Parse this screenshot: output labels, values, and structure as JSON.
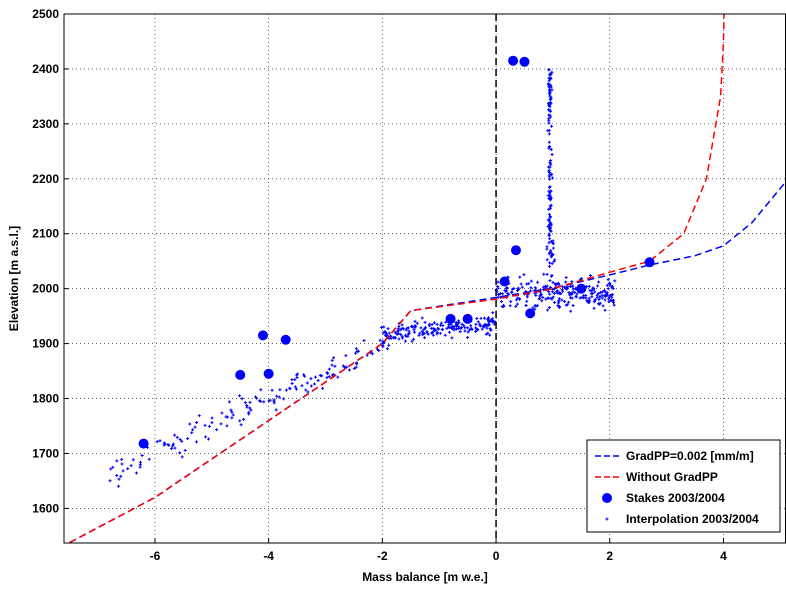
{
  "chart_data": {
    "type": "scatter",
    "xlabel": "Mass balance [m w.e.]",
    "ylabel": "Elevation [m a.s.l.]",
    "xlim": [
      -7.6,
      5.1
    ],
    "ylim": [
      1537,
      2500
    ],
    "xticks": [
      -6,
      -4,
      -2,
      0,
      2,
      4
    ],
    "yticks": [
      1600,
      1700,
      1800,
      1900,
      2000,
      2100,
      2200,
      2300,
      2400,
      2500
    ],
    "grid": true,
    "legend_position": "bottom-right",
    "colors": {
      "blue": "#0000ff",
      "red": "#ff0000",
      "zero_line": "#000000",
      "grid": "#000000"
    },
    "series": [
      {
        "name": "GradPP=0.002 [mm/m]",
        "style": "dashed-line",
        "color": "#0000ff",
        "x": [
          -7.5,
          -6.0,
          -4.0,
          -2.0,
          -1.5,
          0.0,
          1.0,
          2.0,
          2.7,
          3.5,
          4.0,
          4.5,
          5.1
        ],
        "y": [
          1538,
          1620,
          1760,
          1900,
          1960,
          1984,
          2001,
          2025,
          2043,
          2060,
          2078,
          2120,
          2195
        ]
      },
      {
        "name": "Without GradPP",
        "style": "dashed-line",
        "color": "#ff0000",
        "x": [
          -7.5,
          -6.0,
          -4.0,
          -2.0,
          -1.5,
          0.0,
          1.0,
          2.0,
          2.7,
          3.3,
          3.7,
          3.95,
          4.0,
          4.01
        ],
        "y": [
          1538,
          1620,
          1760,
          1900,
          1960,
          1981,
          2000,
          2030,
          2050,
          2100,
          2200,
          2350,
          2450,
          2500
        ]
      },
      {
        "name": "Stakes 2003/2004",
        "style": "large-dot",
        "color": "#0000ff",
        "x": [
          -6.2,
          -4.5,
          -4.1,
          -4.0,
          -3.7,
          -0.8,
          -0.5,
          0.15,
          0.3,
          0.35,
          0.5,
          0.6,
          1.5,
          2.7
        ],
        "y": [
          1718,
          1843,
          1915,
          1845,
          1907,
          1945,
          1945,
          2013,
          2415,
          2070,
          2413,
          1955,
          2000,
          2048
        ]
      },
      {
        "name": "Interpolation 2003/2004",
        "style": "small-plus",
        "color": "#0000ff",
        "generated": true
      }
    ]
  }
}
